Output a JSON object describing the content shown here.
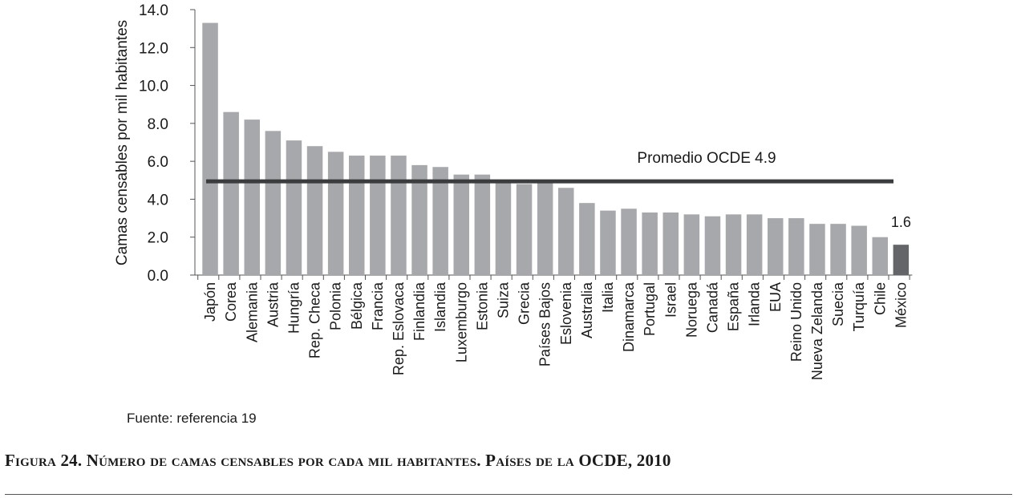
{
  "chart_data": {
    "type": "bar",
    "title": "",
    "ylabel": "Camas censables por mil habitantes",
    "xlabel": "",
    "ylim": [
      0,
      14
    ],
    "yticks": [
      "0.0",
      "2.0",
      "4.0",
      "6.0",
      "8.0",
      "10.0",
      "12.0",
      "14.0"
    ],
    "categories": [
      "Japón",
      "Corea",
      "Alemania",
      "Austria",
      "Hungría",
      "Rep. Checa",
      "Polonia",
      "Bélgica",
      "Francia",
      "Rep. Eslovaca",
      "Finlandia",
      "Islandia",
      "Luxemburgo",
      "Estonia",
      "Suiza",
      "Grecia",
      "Países Bajos",
      "Eslovenia",
      "Australia",
      "Italia",
      "Dinamarca",
      "Portugal",
      "Israel",
      "Noruega",
      "Canadá",
      "España",
      "Irlanda",
      "EUA",
      "Reino Unido",
      "Nueva Zelanda",
      "Suecia",
      "Turquía",
      "Chile",
      "México"
    ],
    "values": [
      13.3,
      8.6,
      8.2,
      7.6,
      7.1,
      6.8,
      6.5,
      6.3,
      6.3,
      6.3,
      5.8,
      5.7,
      5.3,
      5.3,
      4.9,
      4.8,
      5.0,
      4.6,
      3.8,
      3.4,
      3.5,
      3.3,
      3.3,
      3.2,
      3.1,
      3.2,
      3.2,
      3.0,
      3.0,
      2.7,
      2.7,
      2.6,
      2.0,
      1.6
    ],
    "highlight": {
      "category": "México",
      "label": "1.6"
    },
    "reference_line": {
      "label": "Promedio OCDE 4.9",
      "value": 4.9
    },
    "colors": {
      "bar": "#a7a8ab",
      "highlight_bar": "#646569",
      "reference_line": "#3b3c3e",
      "axis": "#555555"
    }
  },
  "source_note": "Fuente: referencia 19",
  "caption": "Figura 24. Número de camas censables por cada mil habitantes. Países de la OCDE, 2010"
}
